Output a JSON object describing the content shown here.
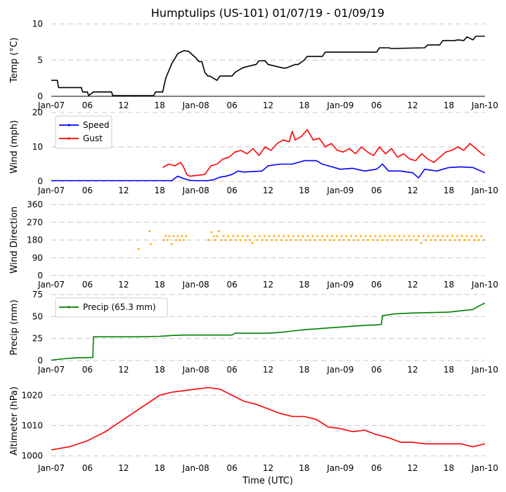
{
  "chart_data": {
    "title": "Humptulips (US-101) 01/07/19 - 01/09/19",
    "xlabel": "Time (UTC)",
    "x_tick_labels": [
      "Jan-07",
      "06",
      "12",
      "18",
      "Jan-08",
      "06",
      "12",
      "18",
      "Jan-09",
      "06",
      "12",
      "18",
      "Jan-10"
    ],
    "x_tick_hours": [
      0,
      6,
      12,
      18,
      24,
      30,
      36,
      42,
      48,
      54,
      60,
      66,
      72
    ],
    "x_range_hours": [
      0,
      72
    ],
    "panels": [
      {
        "type": "line",
        "name": "temperature",
        "ylabel": "Temp (°C)",
        "ylim": [
          0,
          10
        ],
        "yticks": [
          0,
          5,
          10
        ],
        "grid": true,
        "series": [
          {
            "name": "Temp",
            "color": "#000000",
            "x": [
              0,
              1,
              1.2,
              5,
              5.2,
              6,
              6.2,
              7,
              7.3,
              10,
              10.2,
              17,
              17.3,
              18.5,
              19,
              20,
              21,
              22,
              22.8,
              24,
              24.5,
              25,
              25.5,
              26,
              26.3,
              27.5,
              28,
              30,
              30.5,
              31.5,
              32,
              34,
              34.5,
              35.5,
              36,
              38.5,
              39,
              40.5,
              41,
              42,
              42.5,
              45,
              45.5,
              48,
              48.5,
              54,
              54.5,
              56,
              56.5,
              62,
              62.5,
              64.5,
              65,
              67,
              67.5,
              68.5,
              69,
              70,
              70.5,
              72
            ],
            "values": [
              2.2,
              2.2,
              1.2,
              1.2,
              0.6,
              0.6,
              0.1,
              0.6,
              0.6,
              0.6,
              0.1,
              0.1,
              0.6,
              0.6,
              2.5,
              4.5,
              5.9,
              6.3,
              6.2,
              5.3,
              4.8,
              4.8,
              3.3,
              2.8,
              2.8,
              2.2,
              2.8,
              2.8,
              3.3,
              3.8,
              4.0,
              4.4,
              4.9,
              4.9,
              4.4,
              3.9,
              3.9,
              4.4,
              4.4,
              5.0,
              5.5,
              5.5,
              6.1,
              6.1,
              6.1,
              6.1,
              6.7,
              6.7,
              6.6,
              6.7,
              7.1,
              7.1,
              7.7,
              7.7,
              7.8,
              7.7,
              8.2,
              7.8,
              8.3,
              8.3
            ]
          }
        ]
      },
      {
        "type": "line",
        "name": "wind",
        "ylabel": "Wind (mph)",
        "ylim": [
          0,
          20
        ],
        "yticks": [
          0,
          10,
          20
        ],
        "grid": true,
        "legend": "upper-left",
        "series": [
          {
            "name": "Speed",
            "color": "#0000ff",
            "x": [
              0,
              20,
              21,
              22,
              23,
              24,
              26,
              27,
              28,
              29,
              30,
              31,
              32,
              35,
              36,
              38,
              40,
              42,
              44,
              45,
              46,
              48,
              50,
              52,
              54,
              55,
              56,
              58,
              60,
              61,
              62,
              64,
              66,
              68,
              70,
              72
            ],
            "values": [
              0.2,
              0.2,
              1.5,
              0.8,
              0.3,
              0.2,
              0.2,
              0.5,
              1.2,
              1.5,
              2.0,
              3.0,
              2.7,
              3.0,
              4.5,
              5.0,
              5.0,
              6.0,
              6.0,
              5.0,
              4.5,
              3.5,
              3.8,
              3.0,
              3.5,
              5.0,
              3.0,
              3.0,
              2.5,
              1.0,
              3.5,
              3.0,
              4.0,
              4.2,
              4.0,
              2.5
            ]
          },
          {
            "name": "Gust",
            "color": "#ff0000",
            "x": [
              18.5,
              19.5,
              20.5,
              21.5,
              22,
              22.5,
              23,
              25.5,
              26.5,
              27.5,
              28.5,
              29.5,
              30.5,
              31.5,
              32.5,
              33.5,
              34.5,
              35.5,
              36.5,
              37.5,
              38.5,
              39.5,
              40,
              40.5,
              41.5,
              42.5,
              43.5,
              44.5,
              45.5,
              46.5,
              47.5,
              48.5,
              49.5,
              50.5,
              51.5,
              52.5,
              53.5,
              54.5,
              55.5,
              56.5,
              57.5,
              58.5,
              59.5,
              60.5,
              61.5,
              62.5,
              63.5,
              64.5,
              65.5,
              66.5,
              67.5,
              68.5,
              69.5,
              70.5,
              71.5,
              72
            ],
            "values": [
              4.0,
              5.0,
              4.5,
              5.5,
              4.0,
              2.0,
              1.5,
              2.0,
              4.5,
              5.0,
              6.5,
              7.0,
              8.5,
              9.0,
              8.0,
              9.5,
              7.5,
              10.0,
              9.0,
              11.0,
              12.0,
              11.5,
              14.5,
              12.0,
              13.0,
              15.0,
              12.0,
              12.5,
              10.0,
              11.0,
              9.0,
              8.5,
              9.5,
              8.0,
              10.0,
              8.5,
              7.5,
              10.0,
              8.0,
              9.5,
              7.0,
              8.0,
              6.5,
              6.0,
              8.0,
              6.5,
              5.5,
              7.0,
              8.5,
              9.0,
              10.0,
              9.0,
              11.0,
              9.5,
              8.0,
              7.5
            ]
          }
        ]
      },
      {
        "type": "scatter",
        "name": "wind-direction",
        "ylabel": "Wind Direction",
        "ylim": [
          0,
          360
        ],
        "yticks": [
          0,
          90,
          180,
          270,
          360
        ],
        "grid": true,
        "series": [
          {
            "name": "Direction",
            "color": "#ffa500",
            "x": [
              14.5,
              16.3,
              16.5,
              18.7,
              19,
              19.3,
              19.6,
              20,
              20.3,
              20.7,
              21,
              21.3,
              21.7,
              22,
              22.4,
              26.2,
              26.6,
              27,
              27.2,
              27.5,
              27.8,
              28.2,
              28.6,
              29,
              29.4,
              29.8,
              30.2,
              30.6,
              31,
              31.4,
              31.8,
              32.2,
              32.6,
              33,
              33.4,
              33.8,
              34.2,
              34.6,
              35,
              35.4,
              35.8,
              36.2,
              36.6,
              37,
              37.4,
              37.8,
              38.2,
              38.6,
              39,
              39.4,
              39.8,
              40.2,
              40.6,
              41,
              41.4,
              41.8,
              42.2,
              42.6,
              43,
              43.4,
              43.8,
              44.2,
              44.6,
              45,
              45.4,
              45.8,
              46.2,
              46.6,
              47,
              47.4,
              47.8,
              48.2,
              48.6,
              49,
              49.4,
              49.8,
              50.2,
              50.6,
              51,
              51.4,
              51.8,
              52.2,
              52.6,
              53,
              53.4,
              53.8,
              54.2,
              54.6,
              55,
              55.4,
              55.8,
              56.2,
              56.6,
              57,
              57.4,
              57.8,
              58.2,
              58.6,
              59,
              59.4,
              59.8,
              60.2,
              60.6,
              61,
              61.4,
              61.8,
              62.2,
              62.6,
              63,
              63.4,
              63.8,
              64.2,
              64.6,
              65,
              65.4,
              65.8,
              66.2,
              66.6,
              67,
              67.4,
              67.8,
              68.2,
              68.6,
              69,
              69.4,
              69.8,
              70.2,
              70.6,
              71,
              71.4,
              71.8
            ],
            "values": [
              135,
              225,
              160,
              180,
              200,
              180,
              200,
              160,
              200,
              180,
              200,
              180,
              200,
              180,
              200,
              180,
              220,
              200,
              180,
              200,
              225,
              180,
              200,
              180,
              200,
              180,
              200,
              180,
              200,
              180,
              200,
              180,
              200,
              180,
              165,
              200,
              180,
              200,
              180,
              200,
              180,
              200,
              180,
              200,
              180,
              200,
              180,
              200,
              180,
              200,
              180,
              200,
              180,
              200,
              180,
              200,
              180,
              200,
              180,
              200,
              180,
              200,
              180,
              200,
              180,
              200,
              180,
              200,
              180,
              200,
              180,
              200,
              180,
              200,
              180,
              200,
              180,
              200,
              180,
              200,
              180,
              200,
              180,
              200,
              180,
              200,
              180,
              200,
              180,
              200,
              180,
              200,
              180,
              200,
              180,
              200,
              180,
              200,
              180,
              200,
              180,
              200,
              180,
              200,
              165,
              200,
              180,
              200,
              180,
              200,
              180,
              200,
              180,
              200,
              180,
              200,
              180,
              200,
              180,
              200,
              180,
              200,
              180,
              200,
              180,
              200,
              180,
              200,
              180,
              200,
              180
            ]
          }
        ]
      },
      {
        "type": "line",
        "name": "precipitation",
        "ylabel": "Precip (mm)",
        "ylim": [
          0,
          75
        ],
        "yticks": [
          0,
          25,
          50,
          75
        ],
        "grid": true,
        "legend": "upper-left",
        "series": [
          {
            "name": "Precip (65.3 mm)",
            "color": "#008000",
            "x": [
              0,
              2,
              4,
              6.9,
              7,
              7.5,
              10,
              14,
              18,
              19,
              20,
              22,
              25,
              30,
              30.5,
              32,
              36,
              38,
              40,
              42,
              44,
              46,
              48,
              50,
              52,
              54,
              54.8,
              55,
              57,
              60,
              63,
              66,
              68,
              70,
              71,
              72
            ],
            "values": [
              0.5,
              2,
              3,
              3.5,
              27,
              27,
              27,
              27,
              27.5,
              28,
              28.5,
              29,
              29,
              29,
              31,
              31,
              31,
              32,
              33.5,
              35,
              36,
              37,
              38,
              39,
              40,
              40.5,
              41,
              51,
              53,
              54,
              54.5,
              55,
              56.5,
              58,
              62,
              65.3
            ]
          }
        ]
      },
      {
        "type": "line",
        "name": "altimeter",
        "ylabel": "Altimeter (hPa)",
        "ylim": [
          999,
          1024
        ],
        "yticks": [
          1000,
          1010,
          1020
        ],
        "grid": true,
        "series": [
          {
            "name": "Altimeter",
            "color": "#ff0000",
            "x": [
              0,
              3,
              6,
              9,
              12,
              15,
              18,
              20,
              22,
              24,
              26,
              28,
              30,
              32,
              34,
              36,
              38,
              40,
              42,
              44,
              46,
              48,
              50,
              52,
              54,
              56,
              58,
              60,
              62,
              64,
              66,
              68,
              70,
              72
            ],
            "values": [
              1002,
              1003,
              1005,
              1008,
              1012,
              1016,
              1020,
              1021,
              1021.5,
              1022,
              1022.5,
              1022,
              1020,
              1018,
              1017,
              1015.5,
              1014,
              1013,
              1013,
              1012,
              1009.5,
              1009,
              1008,
              1008.5,
              1007,
              1006,
              1004.5,
              1004.5,
              1004,
              1004,
              1004,
              1004,
              1003,
              1004
            ]
          }
        ]
      }
    ]
  }
}
